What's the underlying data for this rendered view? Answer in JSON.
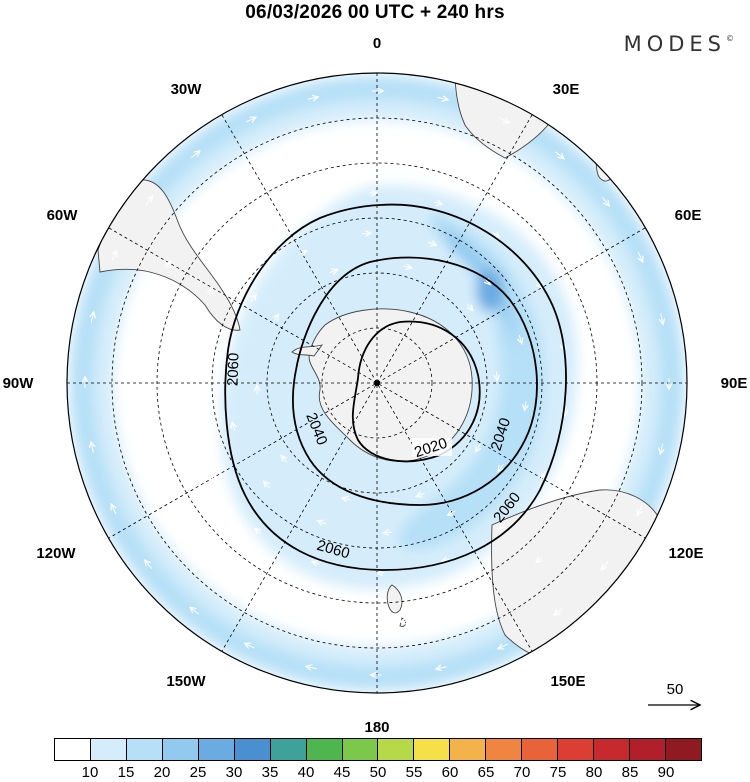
{
  "header": {
    "title": "06/03/2026  00 UTC  + 240 hrs",
    "brand": "MODES",
    "brand_mark": "©"
  },
  "map": {
    "projection": "south-polar-stereographic",
    "longitude_labels": [
      "0",
      "30E",
      "60E",
      "90E",
      "120E",
      "150E",
      "180",
      "150W",
      "120W",
      "90W",
      "60W",
      "30W"
    ],
    "contour_labels": [
      "2020",
      "2040",
      "2040",
      "2060",
      "2060",
      "2060"
    ],
    "reference_vector_label": "50",
    "colors": {
      "land": "#f2f2f2",
      "coast": "#444444",
      "grid": "#000000",
      "wind_10_15": "#d5edfb",
      "wind_15_20": "#b6e0f7",
      "wind_20_25": "#91c9ef",
      "wind_25_30": "#6aabe2",
      "vector": "#ffffff"
    }
  },
  "colorbar": {
    "ticks": [
      "10",
      "15",
      "20",
      "25",
      "30",
      "35",
      "40",
      "45",
      "50",
      "55",
      "60",
      "65",
      "70",
      "75",
      "80",
      "85",
      "90"
    ],
    "colors": [
      "#ffffff",
      "#d5edfb",
      "#b6e0f7",
      "#91c9ef",
      "#6aabe2",
      "#4a8fcf",
      "#3ea19a",
      "#4fb64f",
      "#7cc84a",
      "#b6d94a",
      "#f5e04a",
      "#f4b24a",
      "#ef8540",
      "#e8633a",
      "#dc3e33",
      "#c72a2e",
      "#b01f2a",
      "#8f1a22"
    ]
  }
}
